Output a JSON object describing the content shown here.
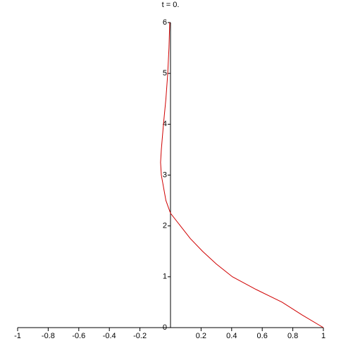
{
  "chart_data": {
    "type": "line",
    "title": "t = 0.",
    "x": [
      1,
      0.86,
      0.73,
      0.56,
      0.405,
      0.3,
      0.21,
      0.13,
      0.065,
      0,
      -0.03,
      -0.06,
      -0.065,
      -0.06,
      -0.046,
      -0.03,
      -0.018,
      -0.01,
      -0.005
    ],
    "values": [
      0,
      0.25,
      0.5,
      0.75,
      1,
      1.25,
      1.5,
      1.75,
      2,
      2.25,
      2.5,
      3,
      3.25,
      3.5,
      4,
      4.5,
      5,
      5.5,
      6
    ],
    "color": "#d00000",
    "xlim": [
      -1,
      1
    ],
    "ylim": [
      0,
      6
    ],
    "xticks": [
      -1,
      -0.8,
      -0.6,
      -0.4,
      -0.2,
      0.2,
      0.4,
      0.6,
      0.8,
      1
    ],
    "yticks": [
      0,
      1,
      2,
      3,
      4,
      5,
      6
    ]
  }
}
